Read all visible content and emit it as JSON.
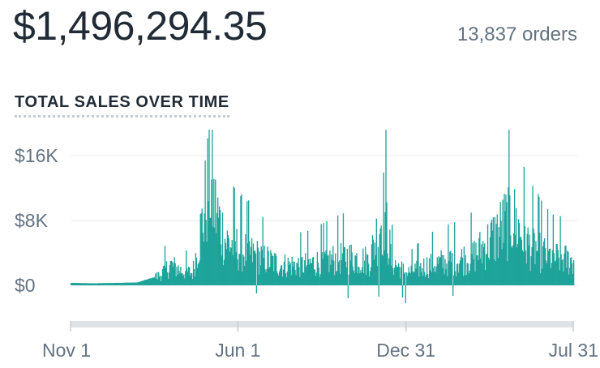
{
  "summary": {
    "total_sales": "$1,496,294.35",
    "orders": "13,837 orders"
  },
  "colors": {
    "bar": "#1ea39a",
    "grid": "#e6e9ec",
    "axis": "#dfe3e8",
    "text": "#637381"
  },
  "chart_data": {
    "type": "bar",
    "title": "TOTAL SALES OVER TIME",
    "xlabel": "",
    "ylabel": "",
    "x_start": "2017-11-01",
    "x_end": "2019-07-31",
    "x_ticks": [
      "Nov 1",
      "Jun 1",
      "Dec 31",
      "Jul 31"
    ],
    "x_tick_dates": [
      "2017-11-01",
      "2018-06-01",
      "2018-12-31",
      "2019-07-31"
    ],
    "y_ticks": [
      {
        "label": "$16K",
        "value": 16000
      },
      {
        "label": "$8K",
        "value": 8000
      },
      {
        "label": "$0",
        "value": 0
      }
    ],
    "ylim": [
      -5800,
      16000
    ],
    "grid": true,
    "weekly_sales": [
      {
        "week_of": "2017-11-01",
        "value": 300
      },
      {
        "week_of": "2017-11-29",
        "value": 250
      },
      {
        "week_of": "2017-12-27",
        "value": 300
      },
      {
        "week_of": "2018-01-24",
        "value": 350
      },
      {
        "week_of": "2018-02-21",
        "value": 1200
      },
      {
        "week_of": "2018-03-07",
        "value": 2500
      },
      {
        "week_of": "2018-03-21",
        "value": 1800
      },
      {
        "week_of": "2018-04-04",
        "value": 1500
      },
      {
        "week_of": "2018-04-18",
        "value": 8500
      },
      {
        "week_of": "2018-04-25",
        "value": 13500
      },
      {
        "week_of": "2018-05-02",
        "value": 9500
      },
      {
        "week_of": "2018-05-16",
        "value": 5500
      },
      {
        "week_of": "2018-06-01",
        "value": 4500
      },
      {
        "week_of": "2018-06-27",
        "value": 3500
      },
      {
        "week_of": "2018-07-25",
        "value": 2500
      },
      {
        "week_of": "2018-08-22",
        "value": 2500
      },
      {
        "week_of": "2018-09-19",
        "value": 3000
      },
      {
        "week_of": "2018-10-17",
        "value": 3500
      },
      {
        "week_of": "2018-11-14",
        "value": 3000
      },
      {
        "week_of": "2018-12-03",
        "value": 9500
      },
      {
        "week_of": "2018-12-12",
        "value": 3000
      },
      {
        "week_of": "2018-12-31",
        "value": 1500
      },
      {
        "week_of": "2019-01-28",
        "value": 2500
      },
      {
        "week_of": "2019-02-25",
        "value": 3000
      },
      {
        "week_of": "2019-03-25",
        "value": 3500
      },
      {
        "week_of": "2019-04-22",
        "value": 6000
      },
      {
        "week_of": "2019-05-13",
        "value": 8500
      },
      {
        "week_of": "2019-06-03",
        "value": 5000
      },
      {
        "week_of": "2019-07-01",
        "value": 3500
      },
      {
        "week_of": "2019-07-31",
        "value": 3000
      }
    ],
    "daily_sales": [
      {
        "date": "2018-06-24",
        "value": -1000
      },
      {
        "date": "2018-10-18",
        "value": -1600
      },
      {
        "date": "2018-11-26",
        "value": -1400
      },
      {
        "date": "2018-12-26",
        "value": -1500
      },
      {
        "date": "2018-12-30",
        "value": -2200
      },
      {
        "date": "2019-02-28",
        "value": -1300
      }
    ]
  }
}
